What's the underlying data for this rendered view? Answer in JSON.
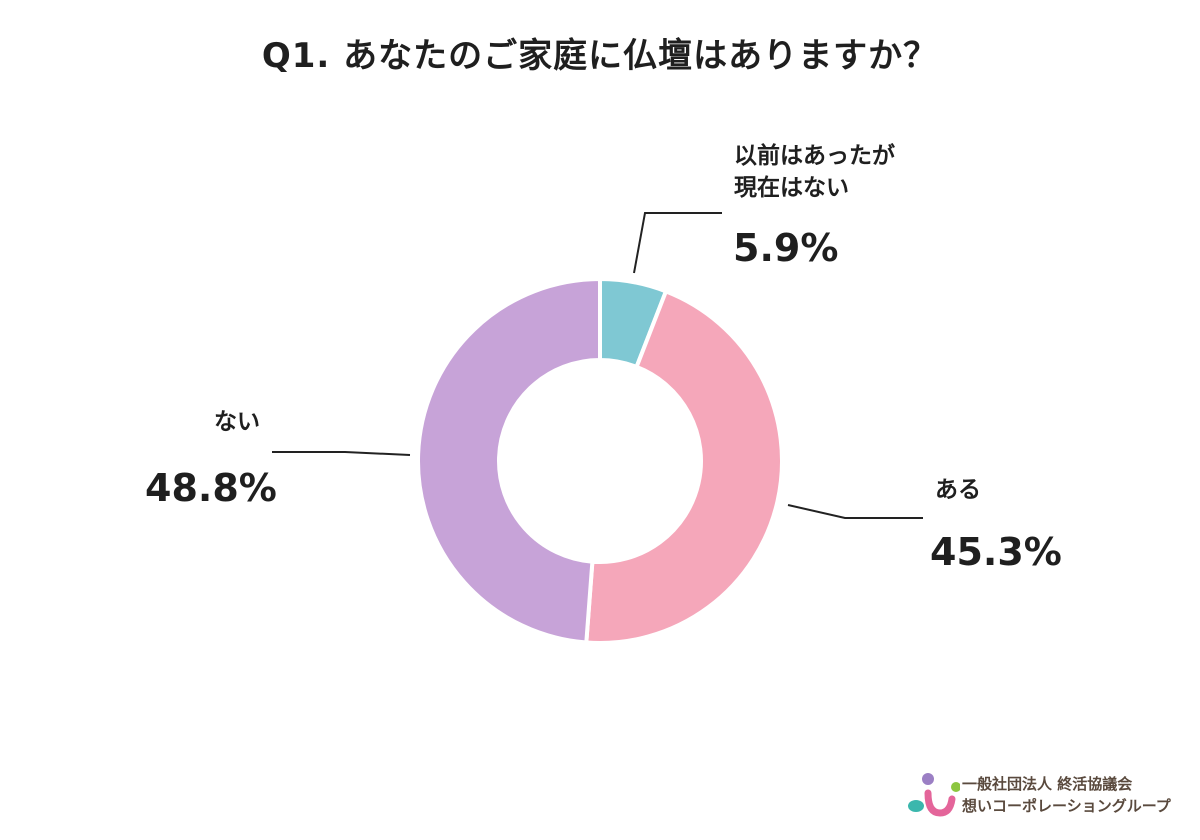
{
  "title": "Q1. あなたのご家庭に仏壇はありますか？",
  "labels": {
    "former": {
      "name_line1": "以前はあったが",
      "name_line2": "現在はない",
      "value": "5.9%"
    },
    "yes": {
      "name": "ある",
      "value": "45.3%"
    },
    "no": {
      "name": "ない",
      "value": "48.8%"
    }
  },
  "logo": {
    "line1": "一般社団法人 終活協議会",
    "line2": "想いコーポレーショングループ",
    "colors": {
      "purple": "#9b7fc4",
      "green": "#8cc63f",
      "pink": "#e4659a",
      "teal": "#3bb7ad"
    }
  },
  "chart_data": {
    "type": "pie",
    "subtype": "donut",
    "title": "Q1. あなたのご家庭に仏壇はありますか？",
    "categories": [
      "以前はあったが現在はない",
      "ある",
      "ない"
    ],
    "values": [
      5.9,
      45.3,
      48.8
    ],
    "unit": "%",
    "colors": [
      "#7fc8d3",
      "#f5a7ba",
      "#c7a3d8"
    ],
    "start_angle": "12 o'clock",
    "direction": "clockwise",
    "legend": "none (callout labels)"
  }
}
